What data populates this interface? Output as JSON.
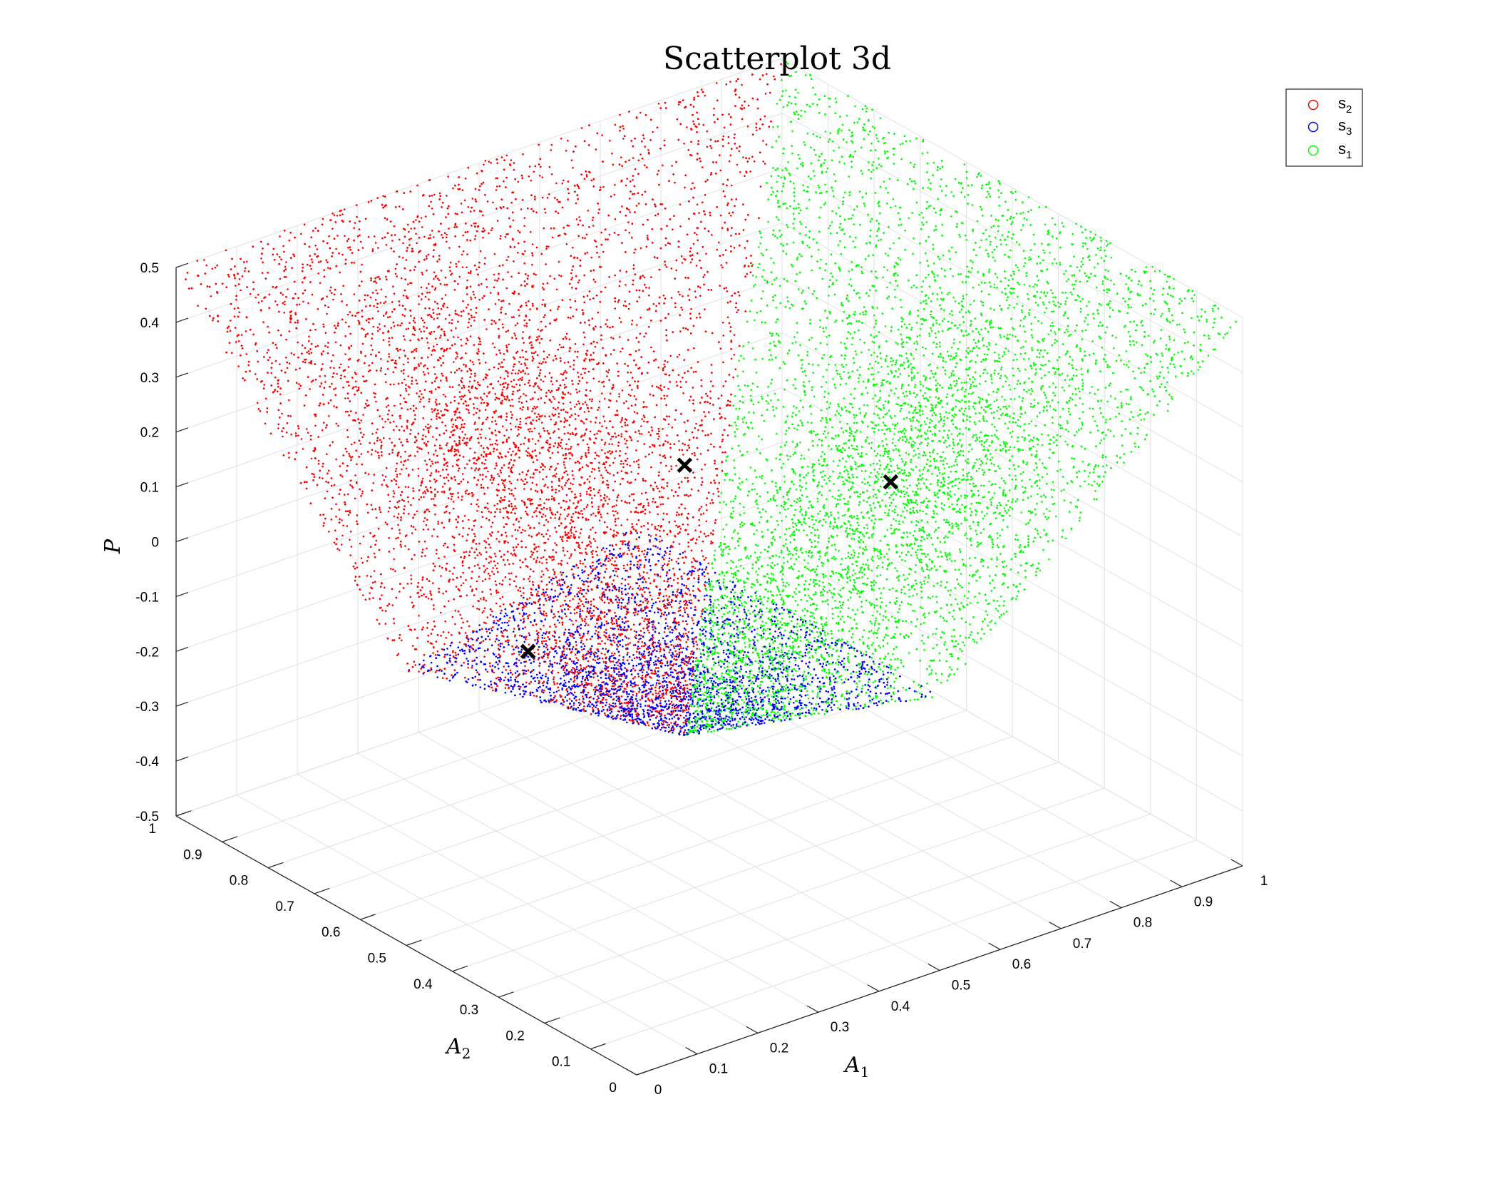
{
  "chart_data": {
    "type": "scatter",
    "title": "Scatterplot 3d",
    "xlabel": "A",
    "xlabel_sub": "1",
    "ylabel": "A",
    "ylabel_sub": "2",
    "zlabel": "P",
    "xlim": [
      0,
      1
    ],
    "ylim": [
      0,
      1
    ],
    "zlim": [
      -0.5,
      0.5
    ],
    "x_ticks": [
      "0",
      "0.1",
      "0.2",
      "0.3",
      "0.4",
      "0.5",
      "0.6",
      "0.7",
      "0.8",
      "0.9",
      "1"
    ],
    "y_ticks": [
      "0",
      "0.1",
      "0.2",
      "0.3",
      "0.4",
      "0.5",
      "0.6",
      "0.7",
      "0.8",
      "0.9",
      "1"
    ],
    "z_ticks": [
      "-0.5",
      "-0.4",
      "-0.3",
      "-0.2",
      "-0.1",
      "0",
      "0.1",
      "0.2",
      "0.3",
      "0.4",
      "0.5"
    ],
    "grid": true,
    "legend_position": "top-right",
    "series": [
      {
        "name": "s",
        "subscript": "2",
        "color": "#ff0000",
        "surface": "P = A2 - 0.5 on region where A2 is largest",
        "marker": "dot",
        "legend_marker": "circle"
      },
      {
        "name": "s",
        "subscript": "3",
        "color": "#0000ff",
        "surface": "P = 0.5 - A1 - A2 on region where 1-A1-A2 is largest",
        "marker": "dot",
        "legend_marker": "circle"
      },
      {
        "name": "s",
        "subscript": "1",
        "color": "#00ff00",
        "surface": "P = A1 - 0.5 on region where A1 is largest",
        "marker": "dot",
        "legend_marker": "circle"
      }
    ],
    "centroids": [
      {
        "x": 0.67,
        "y": 0.33,
        "z": 0.17,
        "marker": "x",
        "color": "#000000"
      },
      {
        "x": 0.33,
        "y": 0.67,
        "z": -0.17,
        "marker": "x",
        "color": "#000000"
      },
      {
        "x": 0.33,
        "y": 0.33,
        "z": 0.33,
        "marker": "x",
        "color": "#000000"
      }
    ]
  }
}
